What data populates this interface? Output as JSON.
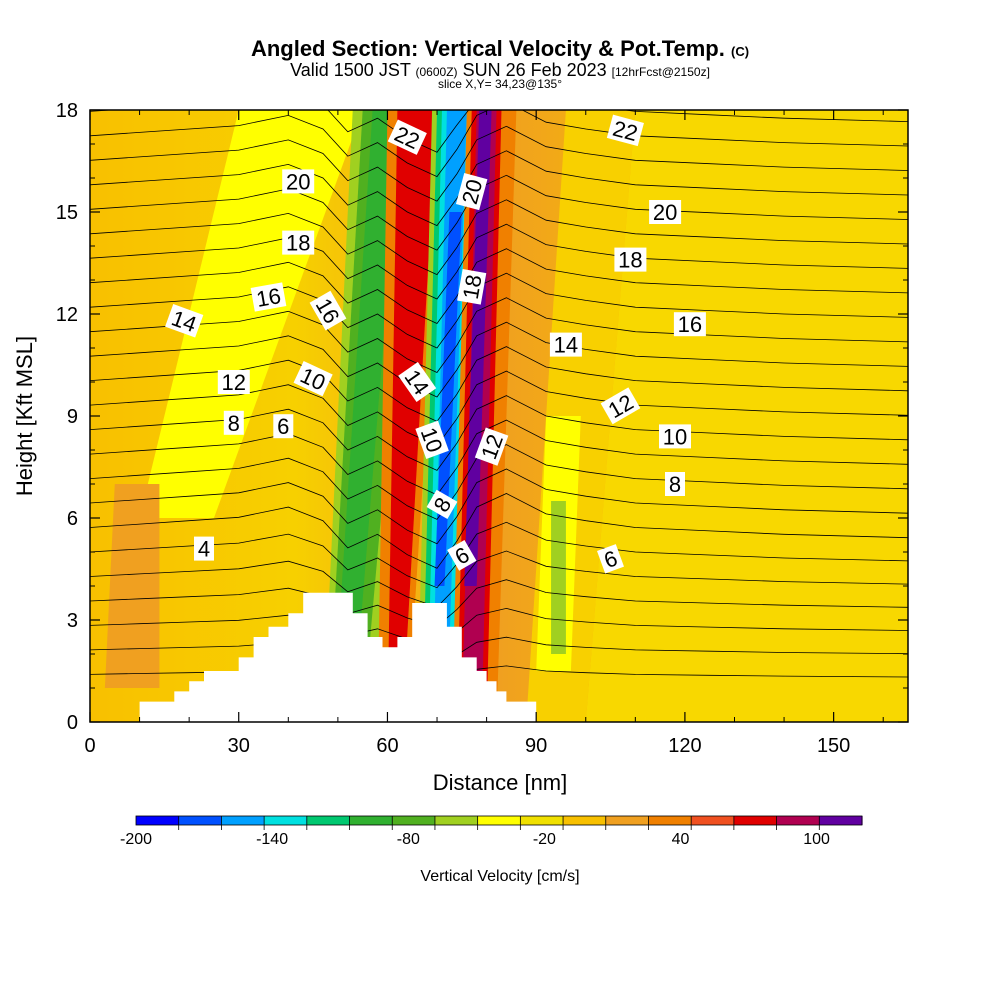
{
  "header": {
    "title": "Angled Section: Vertical Velocity & Pot.Temp.",
    "title_units": "(C)",
    "subtitle_pre": "Valid 1500 JST",
    "subtitle_utc": "(0600Z)",
    "subtitle_date": "SUN 26 Feb 2023",
    "subtitle_fcst": "[12hrFcst@2150z]",
    "slice": "slice X,Y= 34,23@135°"
  },
  "chart_data": {
    "type": "heatmap",
    "xlabel": "Distance [nm]",
    "ylabel": "Height [Kft MSL]",
    "xlim": [
      0,
      165
    ],
    "ylim": [
      0,
      18
    ],
    "x_ticks": [
      "0",
      "30",
      "60",
      "90",
      "120",
      "150"
    ],
    "y_ticks": [
      "0",
      "3",
      "6",
      "9",
      "12",
      "15",
      "18"
    ],
    "colorbar": {
      "label": "Vertical Velocity [cm/s]",
      "tick_labels": [
        "-200",
        "-140",
        "-80",
        "-20",
        "40",
        "100"
      ],
      "range": [
        -200,
        120
      ],
      "step": 20,
      "colors": [
        "#0000ff",
        "#0050ff",
        "#00a0ff",
        "#00e0e0",
        "#00c870",
        "#30b030",
        "#50b020",
        "#a0d020",
        "#ffff00",
        "#f0e000",
        "#f8c000",
        "#f0a020",
        "#f08000",
        "#f05020",
        "#e00000",
        "#b00050",
        "#6000a0"
      ]
    },
    "contour_labels": [
      {
        "text": "4",
        "x": 23,
        "y": 5.1,
        "rot": 0
      },
      {
        "text": "6",
        "x": 39,
        "y": 8.7,
        "rot": 0
      },
      {
        "text": "8",
        "x": 29,
        "y": 8.8,
        "rot": 0
      },
      {
        "text": "10",
        "x": 45,
        "y": 10.1,
        "rot": 25
      },
      {
        "text": "12",
        "x": 29,
        "y": 10.0,
        "rot": 0
      },
      {
        "text": "14",
        "x": 19,
        "y": 11.8,
        "rot": 20
      },
      {
        "text": "16",
        "x": 36,
        "y": 12.5,
        "rot": -10
      },
      {
        "text": "16",
        "x": 48,
        "y": 12.1,
        "rot": 60
      },
      {
        "text": "18",
        "x": 42,
        "y": 14.1,
        "rot": 0
      },
      {
        "text": "20",
        "x": 42,
        "y": 15.9,
        "rot": 0
      },
      {
        "text": "22",
        "x": 64,
        "y": 17.2,
        "rot": 25
      },
      {
        "text": "20",
        "x": 77,
        "y": 15.6,
        "rot": -75
      },
      {
        "text": "18",
        "x": 77,
        "y": 12.8,
        "rot": -80
      },
      {
        "text": "14",
        "x": 66,
        "y": 10.0,
        "rot": 55
      },
      {
        "text": "10",
        "x": 69,
        "y": 8.3,
        "rot": 70
      },
      {
        "text": "8",
        "x": 71,
        "y": 6.4,
        "rot": -60
      },
      {
        "text": "6",
        "x": 75,
        "y": 4.9,
        "rot": -30
      },
      {
        "text": "12",
        "x": 81,
        "y": 8.1,
        "rot": -70
      },
      {
        "text": "14",
        "x": 96,
        "y": 11.1,
        "rot": 0
      },
      {
        "text": "12",
        "x": 107,
        "y": 9.3,
        "rot": -30
      },
      {
        "text": "10",
        "x": 118,
        "y": 8.4,
        "rot": 0
      },
      {
        "text": "8",
        "x": 118,
        "y": 7.0,
        "rot": 0
      },
      {
        "text": "6",
        "x": 105,
        "y": 4.8,
        "rot": -20
      },
      {
        "text": "22",
        "x": 108,
        "y": 17.4,
        "rot": 15
      },
      {
        "text": "20",
        "x": 116,
        "y": 15.0,
        "rot": 0
      },
      {
        "text": "18",
        "x": 109,
        "y": 13.6,
        "rot": 0
      },
      {
        "text": "16",
        "x": 121,
        "y": 11.7,
        "rot": 0
      }
    ],
    "terrain": [
      [
        10,
        0
      ],
      [
        10,
        0.6
      ],
      [
        17,
        0.6
      ],
      [
        17,
        0.9
      ],
      [
        20,
        0.9
      ],
      [
        20,
        1.2
      ],
      [
        23,
        1.2
      ],
      [
        23,
        1.5
      ],
      [
        30,
        1.5
      ],
      [
        30,
        1.9
      ],
      [
        33,
        1.9
      ],
      [
        33,
        2.5
      ],
      [
        36,
        2.5
      ],
      [
        36,
        2.8
      ],
      [
        40,
        2.8
      ],
      [
        40,
        3.2
      ],
      [
        43,
        3.2
      ],
      [
        43,
        3.8
      ],
      [
        53,
        3.8
      ],
      [
        53,
        3.2
      ],
      [
        56,
        3.2
      ],
      [
        56,
        2.5
      ],
      [
        59,
        2.5
      ],
      [
        59,
        2.2
      ],
      [
        62,
        2.2
      ],
      [
        62,
        2.5
      ],
      [
        65,
        2.5
      ],
      [
        65,
        3.5
      ],
      [
        72,
        3.5
      ],
      [
        72,
        2.8
      ],
      [
        75,
        2.8
      ],
      [
        75,
        1.9
      ],
      [
        78,
        1.9
      ],
      [
        78,
        1.5
      ],
      [
        80,
        1.5
      ],
      [
        80,
        1.2
      ],
      [
        82,
        1.2
      ],
      [
        82,
        0.9
      ],
      [
        84,
        0.9
      ],
      [
        84,
        0.6
      ],
      [
        90,
        0.6
      ],
      [
        90,
        0
      ]
    ]
  }
}
